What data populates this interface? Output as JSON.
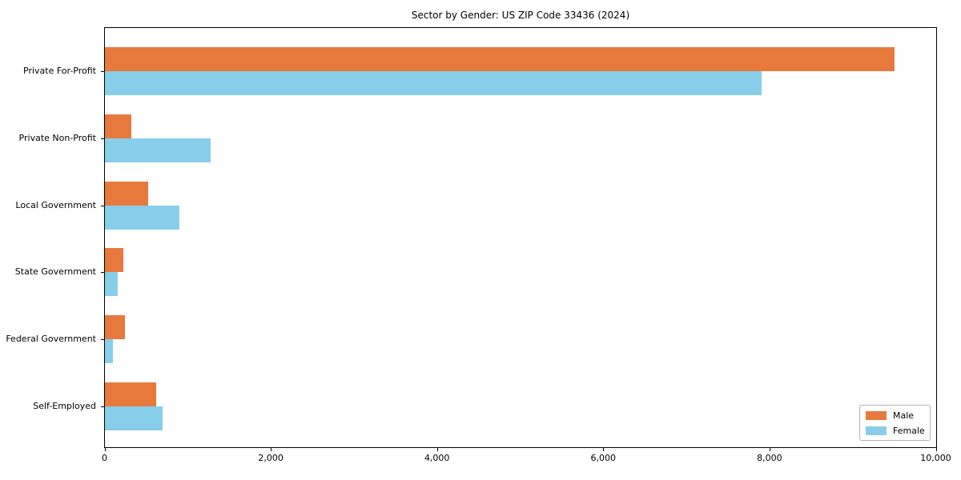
{
  "chart_data": {
    "type": "bar",
    "orientation": "horizontal",
    "title": "Sector by Gender: US ZIP Code 33436 (2024)",
    "categories": [
      "Private For-Profit",
      "Private Non-Profit",
      "Local Government",
      "State Government",
      "Federal Government",
      "Self-Employed"
    ],
    "series": [
      {
        "name": "Male",
        "color": "#E8793C",
        "values": [
          9500,
          320,
          525,
          220,
          240,
          620
        ]
      },
      {
        "name": "Female",
        "color": "#87CEEB",
        "values": [
          7900,
          1270,
          900,
          150,
          100,
          690
        ]
      }
    ],
    "xlabel": "",
    "ylabel": "",
    "xlim": [
      0,
      10000
    ],
    "xticks": {
      "values": [
        0,
        2000,
        4000,
        6000,
        8000,
        10000
      ],
      "labels": [
        "0",
        "2,000",
        "4,000",
        "6,000",
        "8,000",
        "10,000"
      ]
    },
    "grid": false,
    "legend": {
      "position": "lower right",
      "entries": [
        {
          "label": "Male",
          "color": "#E8793C"
        },
        {
          "label": "Female",
          "color": "#87CEEB"
        }
      ]
    },
    "spine_color": "#000000",
    "text_color": "#000000",
    "background_color": "#ffffff"
  }
}
